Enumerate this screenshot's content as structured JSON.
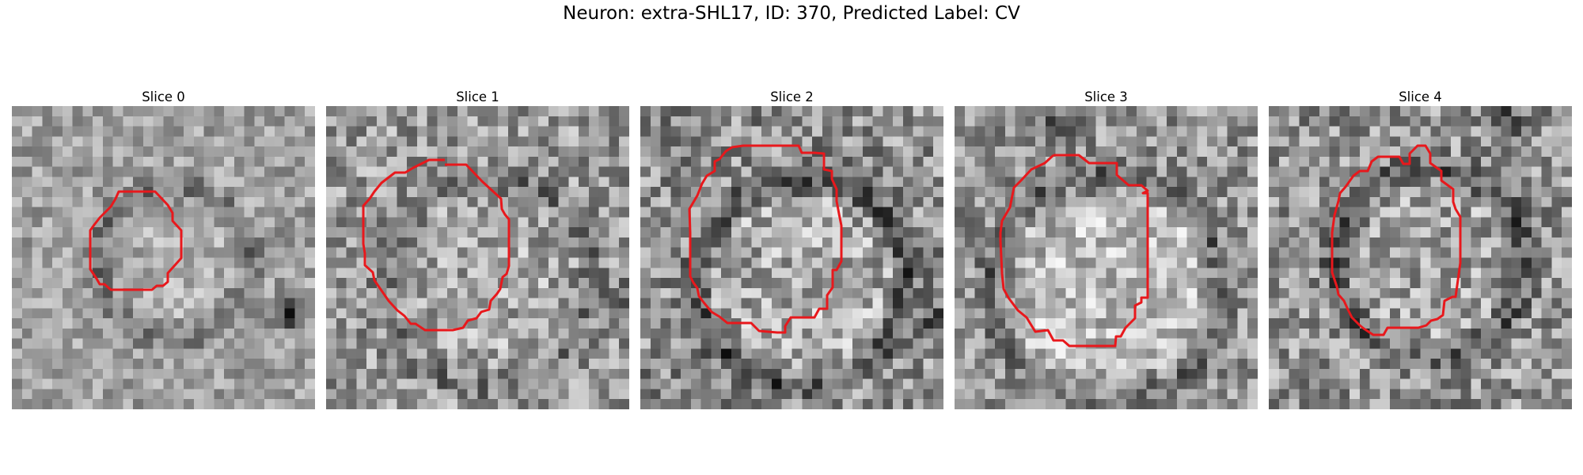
{
  "figure": {
    "title": "Neuron: extra-SHL17, ID: 370, Predicted Label: CV"
  },
  "outline_color": "#e8181c",
  "colormap": "gray",
  "panels": [
    {
      "title": "Slice 0"
    },
    {
      "title": "Slice 1"
    },
    {
      "title": "Slice 2"
    },
    {
      "title": "Slice 3"
    },
    {
      "title": "Slice 4"
    }
  ]
}
